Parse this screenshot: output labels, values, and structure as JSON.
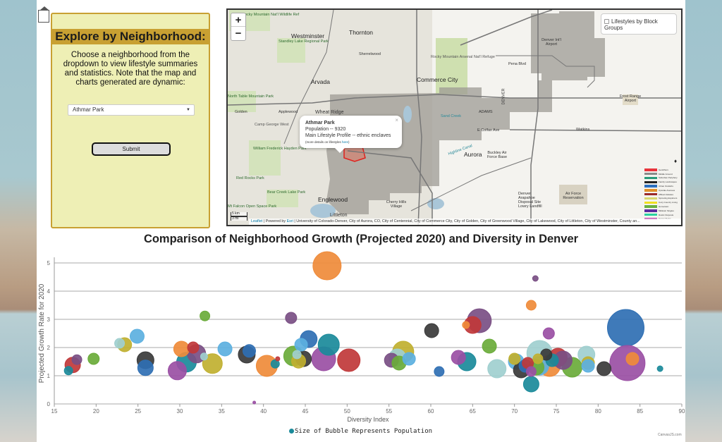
{
  "nav": {
    "home_button_label": "Back to Home"
  },
  "panel": {
    "title": "Explore by Neighborhood:",
    "description": "Choose a neighborhood from the dropdown to view lifestyle summaries and statistics. Note that the map and charts generated are dynamic:",
    "select_value": "Athmar Park",
    "submit_label": "Submit"
  },
  "map": {
    "zoom_in": "+",
    "zoom_out": "−",
    "layer_toggle_label": "Lifestyles by Block Groups",
    "popup": {
      "title": "Athmar Park",
      "population": "Population -- 9320",
      "profile": "Main Lifestyle Profile -- ethnic enclaves",
      "more_prefix": "(more details on lifestyles ",
      "more_link": "here",
      "more_suffix": ")",
      "close": "×"
    },
    "scale": {
      "km": "5 km",
      "mi": "3 mi"
    },
    "attribution": {
      "leaflet": "Leaflet",
      "powered": " | Powered by ",
      "esri": "Esri",
      "text": " | University of Colorado-Denver, City of Aurora, CO, City of Centennial, City of Commerce City, City of Golden, City of Greenwood Village, City of Lakewood, City of Littleton, City of Westminster, County an..."
    },
    "labels": [
      {
        "text": "Westminster",
        "cls": "big"
      },
      {
        "text": "Thornton",
        "cls": "big"
      },
      {
        "text": "Sherrelwood",
        "cls": "small"
      },
      {
        "text": "Arvada",
        "cls": "big"
      },
      {
        "text": "Commerce City",
        "cls": "big"
      },
      {
        "text": "Wheat Ridge",
        "cls": ""
      },
      {
        "text": "Applewood",
        "cls": "small"
      },
      {
        "text": "Golden",
        "cls": "small"
      },
      {
        "text": "Englewood",
        "cls": "big"
      },
      {
        "text": "Littleton",
        "cls": ""
      },
      {
        "text": "Aurora",
        "cls": "big"
      },
      {
        "text": "Cherry Hills Village",
        "cls": "small"
      },
      {
        "text": "Pena Blvd",
        "cls": "small"
      },
      {
        "text": "Denver Int'l Airport",
        "cls": "small"
      },
      {
        "text": "Frost Range Airport",
        "cls": "small"
      },
      {
        "text": "E Colfax Ave",
        "cls": "small"
      },
      {
        "text": "Watkins",
        "cls": "small"
      },
      {
        "text": "Buckley Air Force Base",
        "cls": "small"
      },
      {
        "text": "Air Force Reservation",
        "cls": "small"
      },
      {
        "text": "Denver Arapahoe Disposal Site Lowry Landfill",
        "cls": "small"
      },
      {
        "text": "Sand Creek",
        "cls": "small"
      },
      {
        "text": "Highline Canal",
        "cls": "small"
      },
      {
        "text": "ADAMS",
        "cls": "small"
      },
      {
        "text": "DENVER",
        "cls": "small"
      }
    ],
    "parks": [
      "Rocky Mountain Nat'l Wildlife Ref",
      "Standley Lake Regional Park",
      "Rocky Mountain Arsenal Nat'l Refuge",
      "North Table Mountain Park",
      "Camp George West",
      "William Frederick Hayden Park",
      "Red Rocks Park",
      "Bear Creek Lake Park",
      "Mt Falcon Open Space Park"
    ],
    "legend": [
      {
        "label": "Gentrifiers",
        "color": "#e8343c"
      },
      {
        "label": "Middle Ground",
        "color": "#8a8a8a"
      },
      {
        "label": "Suburban Periphery",
        "color": "#2a9a7a"
      },
      {
        "label": "Family Landscapes",
        "color": "#222222"
      },
      {
        "label": "Urban Outskirts",
        "color": "#2b6fbf"
      },
      {
        "label": "Upscale Avenues",
        "color": "#e0902a"
      },
      {
        "label": "Affluent Estates",
        "color": "#9a2a2a"
      },
      {
        "label": "Sprouting Explorers",
        "color": "#d8d870"
      },
      {
        "label": "Cozy Country Living",
        "color": "#f0e020"
      },
      {
        "label": "Hometown",
        "color": "#6ab040"
      },
      {
        "label": "Midtown Singles",
        "color": "#5a2aa0"
      },
      {
        "label": "Rustic Outposts",
        "color": "#2ad0a0"
      },
      {
        "label": "Senior Styles",
        "color": "#b02aa0"
      }
    ]
  },
  "chart_data": {
    "type": "scatter",
    "title": "Comparison of Neighborhood Growth (Projected 2020) and Diversity in Denver",
    "xlabel": "Diversity Index",
    "ylabel": "Projected Growth Rate for 2020",
    "xlim": [
      15,
      90
    ],
    "ylim": [
      0,
      5
    ],
    "xticks": [
      "15",
      "20",
      "25",
      "30",
      "35",
      "40",
      "45",
      "50",
      "55",
      "60",
      "65",
      "70",
      "75",
      "80",
      "85",
      "90"
    ],
    "yticks": [
      "0",
      "1",
      "2",
      "3",
      "4",
      "5"
    ],
    "grid": true,
    "legend": {
      "label": "Size of Bubble Represents Population",
      "color": "#1a8a9a",
      "position": "bottom"
    },
    "credit": "CanvasJS.com",
    "points": [
      {
        "x": 16.7,
        "y": 1.18,
        "r": 6,
        "color": "#1a8a9a"
      },
      {
        "x": 17.2,
        "y": 1.38,
        "r": 11,
        "color": "#c0383a"
      },
      {
        "x": 17.7,
        "y": 1.57,
        "r": 7,
        "color": "#7a4f84"
      },
      {
        "x": 19.7,
        "y": 1.6,
        "r": 8,
        "color": "#6aab3a"
      },
      {
        "x": 22.8,
        "y": 2.15,
        "r": 7,
        "color": "#9fcfcf"
      },
      {
        "x": 23.4,
        "y": 2.1,
        "r": 10,
        "color": "#c0b030"
      },
      {
        "x": 24.9,
        "y": 2.4,
        "r": 10,
        "color": "#5cb0e0"
      },
      {
        "x": 25.9,
        "y": 1.55,
        "r": 12,
        "color": "#3a3a3a"
      },
      {
        "x": 25.9,
        "y": 1.28,
        "r": 11,
        "color": "#2f6fb3"
      },
      {
        "x": 30.2,
        "y": 1.95,
        "r": 11,
        "color": "#ef8b3a"
      },
      {
        "x": 29.7,
        "y": 1.18,
        "r": 13,
        "color": "#9a4fa4"
      },
      {
        "x": 31.6,
        "y": 2.0,
        "r": 8,
        "color": "#c0383a"
      },
      {
        "x": 30.8,
        "y": 1.48,
        "r": 14,
        "color": "#1a8a9a"
      },
      {
        "x": 32.0,
        "y": 1.78,
        "r": 13,
        "color": "#7a4f84"
      },
      {
        "x": 33.0,
        "y": 3.12,
        "r": 7,
        "color": "#6aab3a"
      },
      {
        "x": 32.9,
        "y": 1.68,
        "r": 5,
        "color": "#9fcfcf"
      },
      {
        "x": 33.9,
        "y": 1.43,
        "r": 14,
        "color": "#c0b030"
      },
      {
        "x": 35.4,
        "y": 1.95,
        "r": 10,
        "color": "#5cb0e0"
      },
      {
        "x": 38.0,
        "y": 1.75,
        "r": 12,
        "color": "#3a3a3a"
      },
      {
        "x": 38.3,
        "y": 1.88,
        "r": 9,
        "color": "#2f6fb3"
      },
      {
        "x": 40.4,
        "y": 1.35,
        "r": 15,
        "color": "#ef8b3a"
      },
      {
        "x": 41.4,
        "y": 1.42,
        "r": 6,
        "color": "#1a8a9a"
      },
      {
        "x": 41.7,
        "y": 1.6,
        "r": 3,
        "color": "#c0383a"
      },
      {
        "x": 38.9,
        "y": 0.05,
        "r": 2,
        "color": "#9a4fa4"
      },
      {
        "x": 43.3,
        "y": 3.05,
        "r": 8,
        "color": "#7a4f84"
      },
      {
        "x": 43.6,
        "y": 1.7,
        "r": 14,
        "color": "#6aab3a"
      },
      {
        "x": 44.0,
        "y": 1.75,
        "r": 6,
        "color": "#9fcfcf"
      },
      {
        "x": 44.2,
        "y": 1.52,
        "r": 10,
        "color": "#c0b030"
      },
      {
        "x": 44.5,
        "y": 2.1,
        "r": 9,
        "color": "#5cb0e0"
      },
      {
        "x": 44.8,
        "y": 1.6,
        "r": 11,
        "color": "#3a3a3a"
      },
      {
        "x": 45.4,
        "y": 2.3,
        "r": 12,
        "color": "#2f6fb3"
      },
      {
        "x": 47.6,
        "y": 4.9,
        "r": 20,
        "color": "#ef8b3a"
      },
      {
        "x": 47.2,
        "y": 1.6,
        "r": 17,
        "color": "#9a4fa4"
      },
      {
        "x": 47.8,
        "y": 2.1,
        "r": 15,
        "color": "#1a8a9a"
      },
      {
        "x": 50.2,
        "y": 1.55,
        "r": 16,
        "color": "#c0383a"
      },
      {
        "x": 55.3,
        "y": 1.55,
        "r": 10,
        "color": "#7a4f84"
      },
      {
        "x": 56.2,
        "y": 1.45,
        "r": 10,
        "color": "#6aab3a"
      },
      {
        "x": 56.0,
        "y": 1.65,
        "r": 12,
        "color": "#9fcfcf"
      },
      {
        "x": 56.7,
        "y": 1.85,
        "r": 15,
        "color": "#c0b030"
      },
      {
        "x": 57.4,
        "y": 1.6,
        "r": 9,
        "color": "#5cb0e0"
      },
      {
        "x": 60.1,
        "y": 2.6,
        "r": 10,
        "color": "#3a3a3a"
      },
      {
        "x": 61.0,
        "y": 1.15,
        "r": 7,
        "color": "#2f6fb3"
      },
      {
        "x": 63.3,
        "y": 1.65,
        "r": 10,
        "color": "#9a4fa4"
      },
      {
        "x": 64.3,
        "y": 1.5,
        "r": 13,
        "color": "#1a8a9a"
      },
      {
        "x": 64.2,
        "y": 2.8,
        "r": 5,
        "color": "#ef8b3a"
      },
      {
        "x": 65.0,
        "y": 2.8,
        "r": 12,
        "color": "#c0383a"
      },
      {
        "x": 65.8,
        "y": 2.95,
        "r": 17,
        "color": "#7a4f84"
      },
      {
        "x": 67.0,
        "y": 2.05,
        "r": 10,
        "color": "#6aab3a"
      },
      {
        "x": 67.9,
        "y": 1.25,
        "r": 13,
        "color": "#9fcfcf"
      },
      {
        "x": 70.0,
        "y": 1.6,
        "r": 8,
        "color": "#c0b030"
      },
      {
        "x": 70.2,
        "y": 1.5,
        "r": 11,
        "color": "#5cb0e0"
      },
      {
        "x": 70.8,
        "y": 1.2,
        "r": 11,
        "color": "#3a3a3a"
      },
      {
        "x": 71.3,
        "y": 1.35,
        "r": 9,
        "color": "#2f6fb3"
      },
      {
        "x": 72.0,
        "y": 3.5,
        "r": 7,
        "color": "#ef8b3a"
      },
      {
        "x": 72.0,
        "y": 1.15,
        "r": 7,
        "color": "#9a4fa4"
      },
      {
        "x": 72.0,
        "y": 0.7,
        "r": 11,
        "color": "#1a8a9a"
      },
      {
        "x": 71.6,
        "y": 1.45,
        "r": 8,
        "color": "#c0383a"
      },
      {
        "x": 72.5,
        "y": 4.45,
        "r": 4,
        "color": "#7a4f84"
      },
      {
        "x": 72.6,
        "y": 1.3,
        "r": 11,
        "color": "#6aab3a"
      },
      {
        "x": 73.0,
        "y": 1.8,
        "r": 18,
        "color": "#9fcfcf"
      },
      {
        "x": 72.8,
        "y": 1.6,
        "r": 7,
        "color": "#c0b030"
      },
      {
        "x": 73.0,
        "y": 1.35,
        "r": 13,
        "color": "#5cb0e0"
      },
      {
        "x": 73.8,
        "y": 1.75,
        "r": 8,
        "color": "#3a3a3a"
      },
      {
        "x": 74.1,
        "y": 2.5,
        "r": 8,
        "color": "#9a4fa4"
      },
      {
        "x": 74.2,
        "y": 1.35,
        "r": 15,
        "color": "#ef8b3a"
      },
      {
        "x": 74.5,
        "y": 1.55,
        "r": 9,
        "color": "#1a8a9a"
      },
      {
        "x": 75.2,
        "y": 1.65,
        "r": 13,
        "color": "#c0383a"
      },
      {
        "x": 75.8,
        "y": 1.55,
        "r": 13,
        "color": "#7a4f84"
      },
      {
        "x": 76.9,
        "y": 1.3,
        "r": 14,
        "color": "#6aab3a"
      },
      {
        "x": 78.6,
        "y": 1.75,
        "r": 12,
        "color": "#9fcfcf"
      },
      {
        "x": 78.8,
        "y": 1.45,
        "r": 9,
        "color": "#c0b030"
      },
      {
        "x": 78.8,
        "y": 1.35,
        "r": 9,
        "color": "#5cb0e0"
      },
      {
        "x": 80.7,
        "y": 1.25,
        "r": 10,
        "color": "#3a3a3a"
      },
      {
        "x": 83.3,
        "y": 2.7,
        "r": 26,
        "color": "#2f6fb3"
      },
      {
        "x": 83.5,
        "y": 1.45,
        "r": 25,
        "color": "#9a4fa4"
      },
      {
        "x": 84.1,
        "y": 1.6,
        "r": 9,
        "color": "#ef8b3a"
      },
      {
        "x": 87.4,
        "y": 1.25,
        "r": 4,
        "color": "#1a8a9a"
      }
    ]
  }
}
